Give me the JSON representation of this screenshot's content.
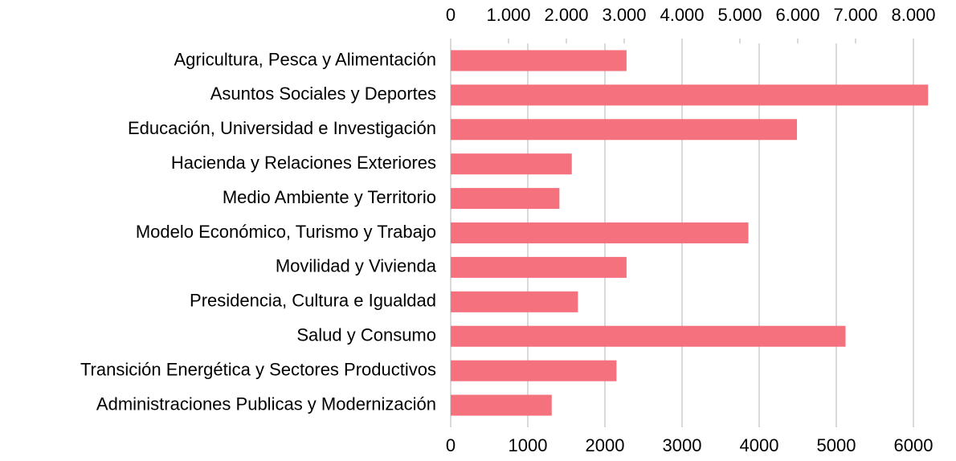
{
  "chart_data": {
    "type": "bar",
    "orientation": "horizontal",
    "categories": [
      "Agricultura, Pesca y Alimentación",
      "Asuntos Sociales y Deportes",
      "Educación, Universidad e Investigación",
      "Hacienda y Relaciones Exteriores",
      "Medio Ambiente y Territorio",
      "Modelo Económico, Turismo y Trabajo",
      "Movilidad y Vivienda",
      "Presidencia, Cultura e Igualdad",
      "Salud y Consumo",
      "Transición Energética y Sectores Productivos",
      "Administraciones Publicas y Modernización"
    ],
    "values": [
      2280,
      6190,
      4490,
      1570,
      1410,
      3860,
      2280,
      1650,
      5120,
      2150,
      1310
    ],
    "color": "#f4717d",
    "xlim": [
      0,
      6000
    ],
    "xticks": [
      0,
      1000,
      2000,
      3000,
      4000,
      5000,
      6000
    ],
    "x2lim": [
      0,
      8000
    ],
    "x2ticks": [
      0,
      {
        "value": 1000,
        "label": "1.000"
      },
      {
        "value": 2000,
        "label": "2.000"
      },
      {
        "value": 3000,
        "label": "3.000"
      },
      {
        "value": 4000,
        "label": "4.000"
      },
      {
        "value": 5000,
        "label": "5.000"
      },
      {
        "value": 6000,
        "label": "6.000"
      },
      {
        "value": 7000,
        "label": "7.000"
      },
      {
        "value": 8000,
        "label": "8.000"
      }
    ],
    "grid": true
  }
}
